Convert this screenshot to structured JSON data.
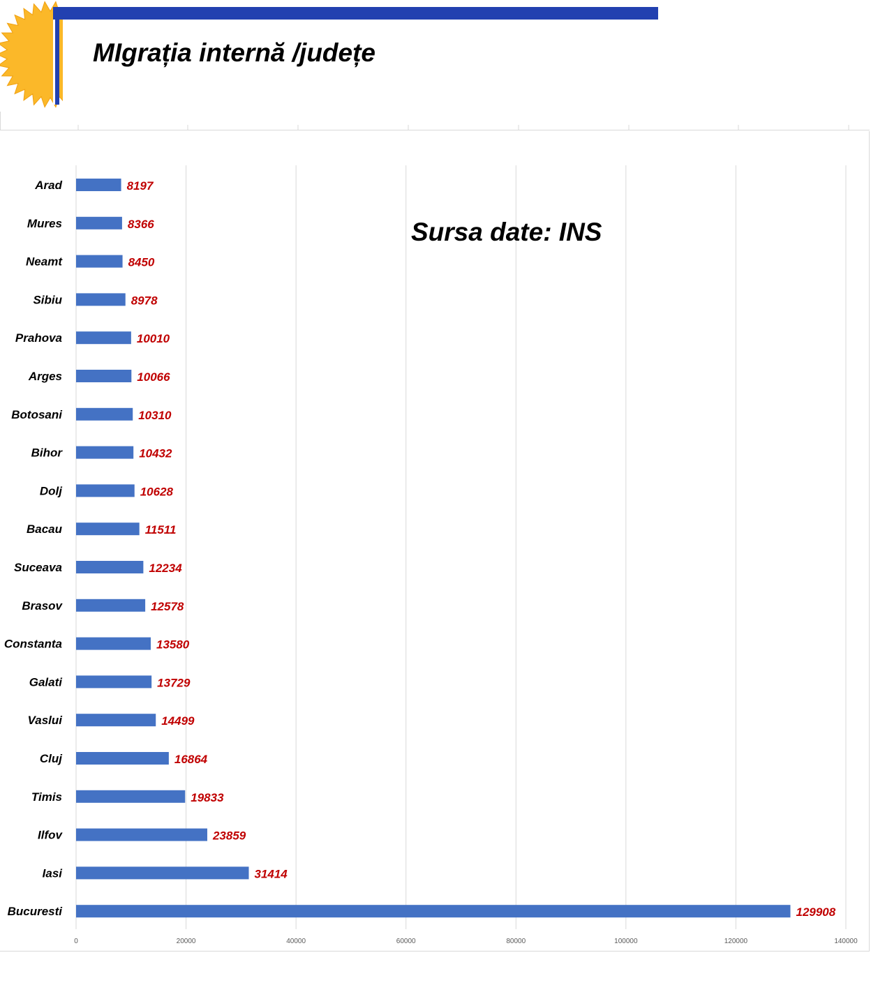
{
  "slide": {
    "title": "MIgrația internă /județe",
    "accent_color": "#2241b0",
    "sun_color": "#fbb829",
    "icon": "sun-icon"
  },
  "chart_data": {
    "type": "bar",
    "orientation": "horizontal",
    "title": "",
    "annotation": "Sursa date: INS",
    "categories": [
      "Arad",
      "Mures",
      "Neamt",
      "Sibiu",
      "Prahova",
      "Arges",
      "Botosani",
      "Bihor",
      "Dolj",
      "Bacau",
      "Suceava",
      "Brasov",
      "Constanta",
      "Galati",
      "Vaslui",
      "Cluj",
      "Timis",
      "Ilfov",
      "Iasi",
      "Bucuresti"
    ],
    "values": [
      8197,
      8366,
      8450,
      8978,
      10010,
      10066,
      10310,
      10432,
      10628,
      11511,
      12234,
      12578,
      13580,
      13729,
      14499,
      16864,
      19833,
      23859,
      31414,
      129908
    ],
    "data_labels": [
      "8197",
      "8366",
      "8450",
      "8978",
      "10010",
      "10066",
      "10310",
      "10432",
      "10628",
      "11511",
      "12234",
      "12578",
      "13580",
      "13729",
      "14499",
      "16864",
      "19833",
      "23859",
      "31414",
      "129908"
    ],
    "x_ticks": [
      "0",
      "20000",
      "40000",
      "60000",
      "80000",
      "100000",
      "120000",
      "140000"
    ],
    "xlim": [
      0,
      140000
    ],
    "xlabel": "",
    "ylabel": "",
    "grid": true,
    "legend": false,
    "bar_color": "#4472c4",
    "label_color": "#c00000"
  }
}
